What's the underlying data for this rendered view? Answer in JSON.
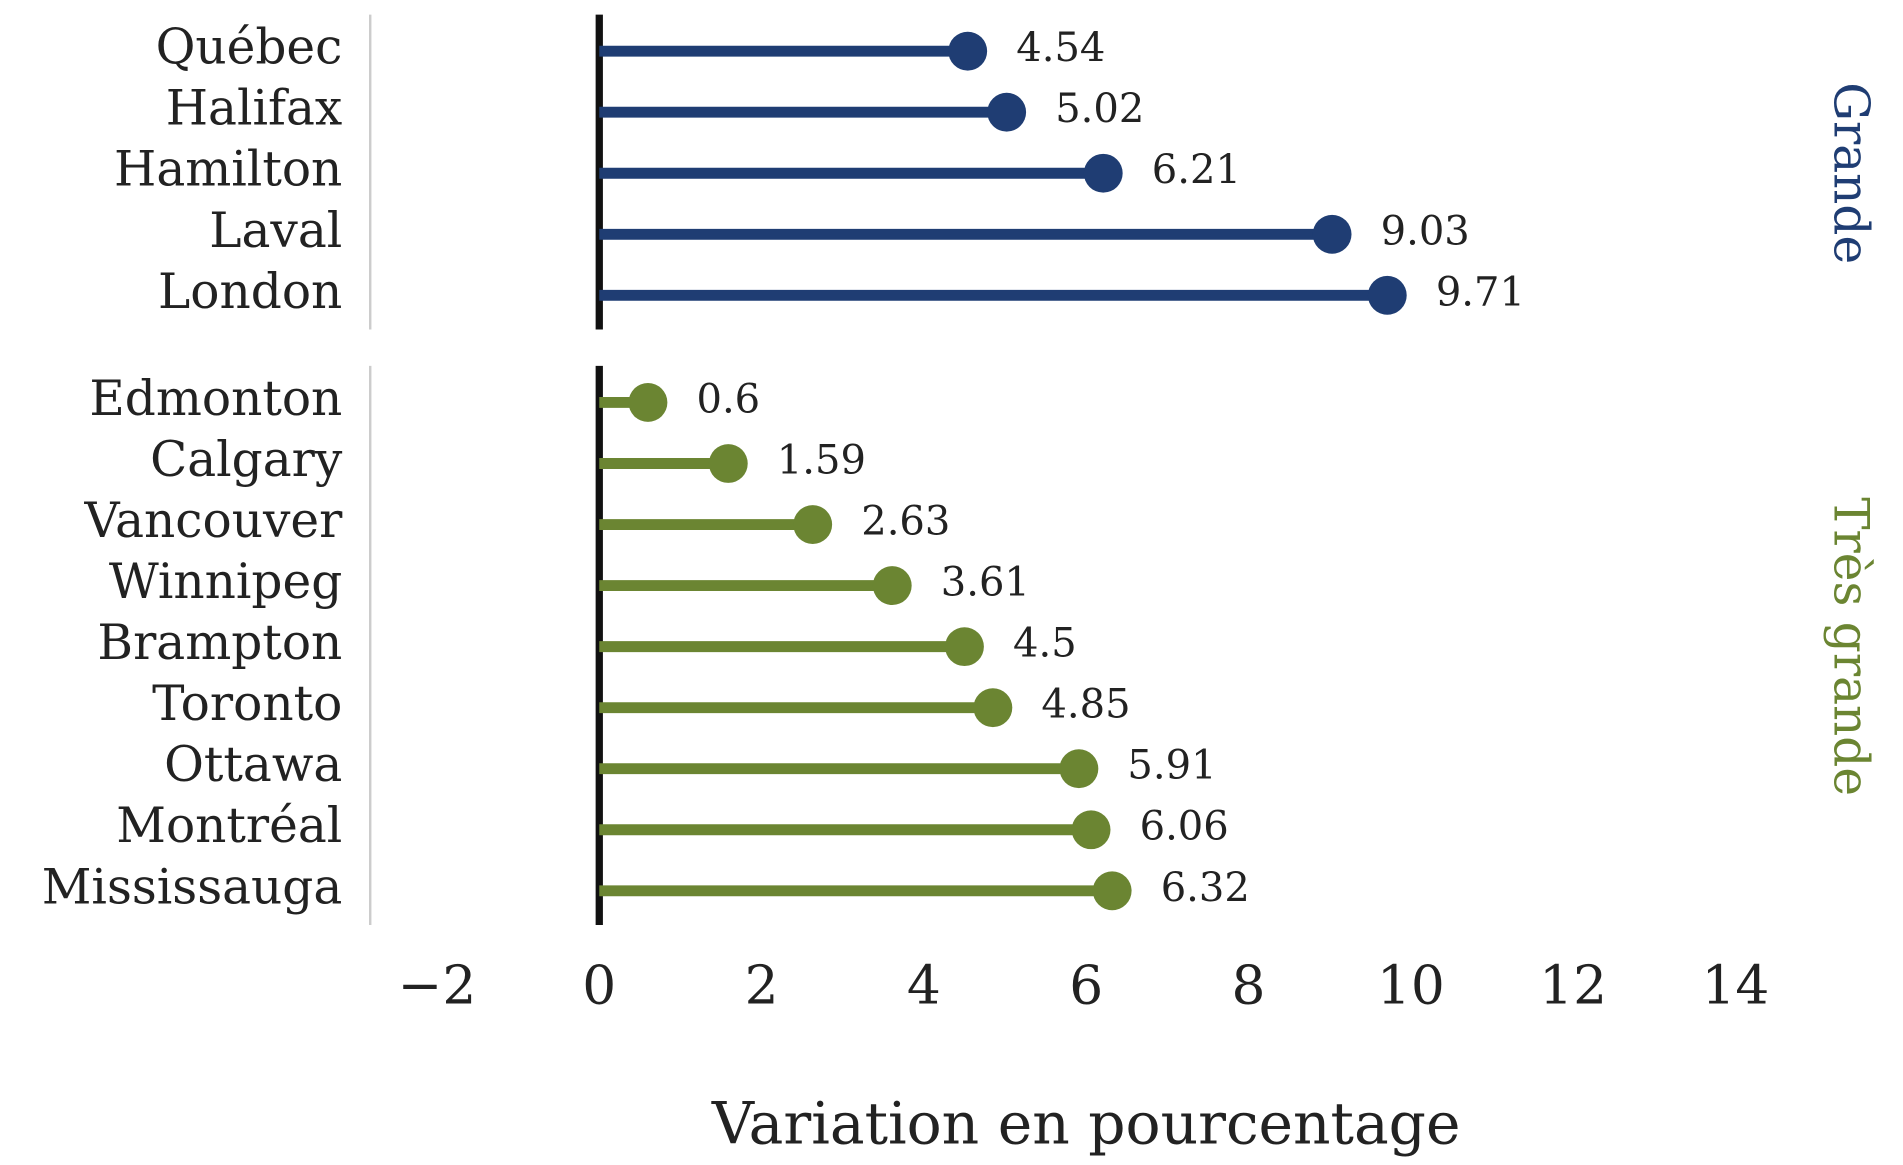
{
  "chart_data": {
    "type": "lollipop",
    "xlabel": "Variation en pourcentage",
    "xlim": [
      -2,
      14
    ],
    "xticks": [
      {
        "value": -2,
        "label": "−2"
      },
      0,
      2,
      4,
      6,
      8,
      10,
      12,
      14
    ],
    "panels": [
      {
        "name": "Grande",
        "color": "#1f3d73",
        "categories": [
          "Québec",
          "Halifax",
          "Hamilton",
          "Laval",
          "London"
        ],
        "values": [
          4.54,
          5.02,
          6.21,
          9.03,
          9.71
        ]
      },
      {
        "name": "Très grande",
        "color": "#6b8532",
        "categories": [
          "Edmonton",
          "Calgary",
          "Vancouver",
          "Winnipeg",
          "Brampton",
          "Toronto",
          "Ottawa",
          "Montréal",
          "Mississauga"
        ],
        "values": [
          0.6,
          1.59,
          2.63,
          3.61,
          4.5,
          4.85,
          5.91,
          6.06,
          6.32
        ]
      }
    ]
  }
}
